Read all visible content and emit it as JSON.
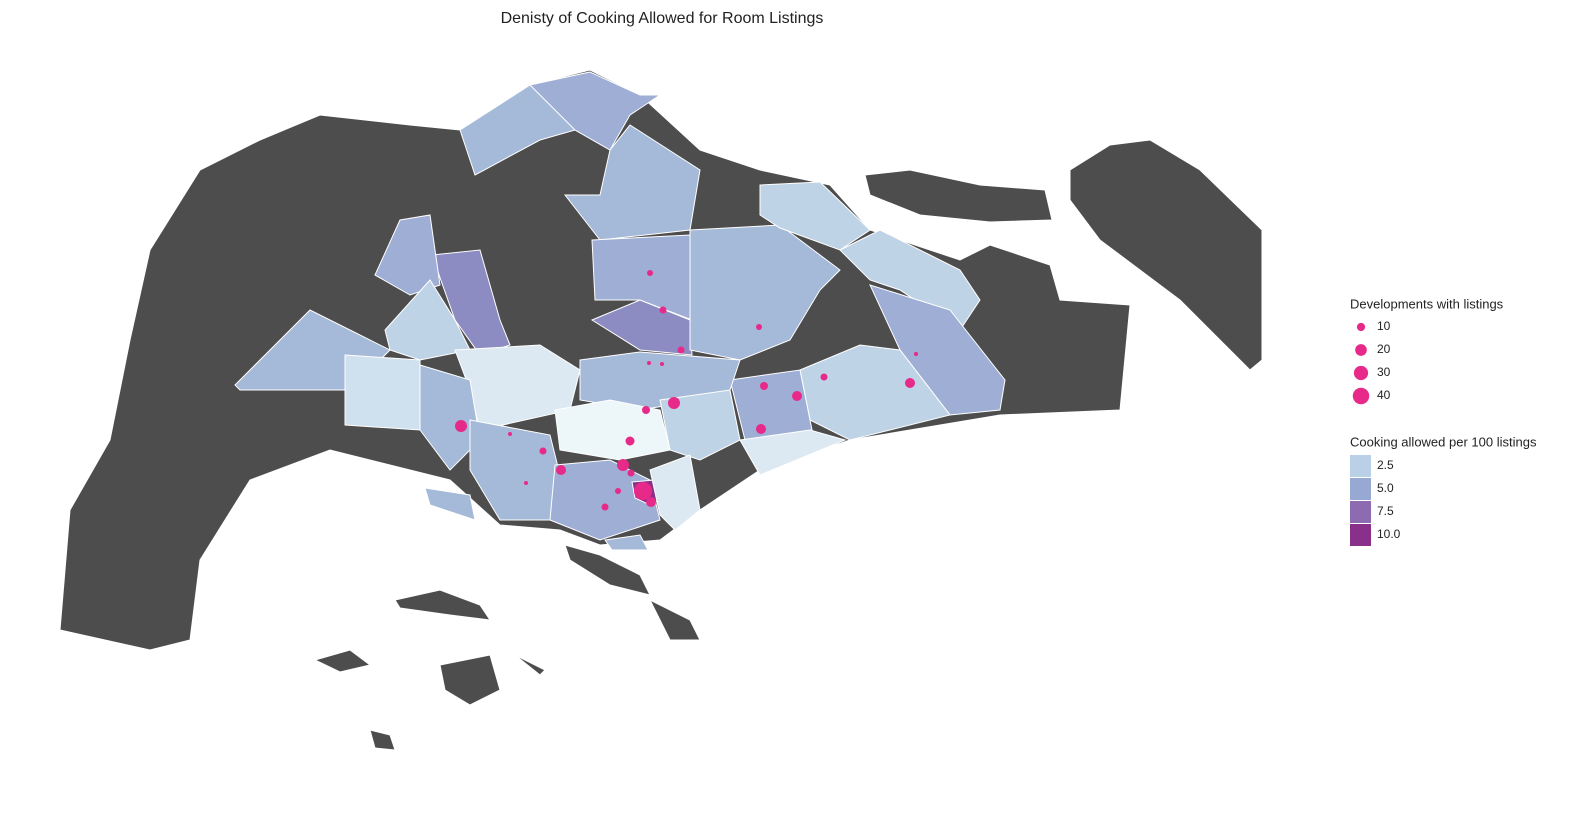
{
  "map": {
    "title": "Denisty of Cooking Allowed for Room Listings",
    "size_legend": {
      "title": "Developments with listings",
      "entries": [
        10,
        20,
        30,
        40
      ],
      "color": "#e7298a"
    },
    "color_legend": {
      "title": "Cooking allowed per 100 listings",
      "entries": [
        2.5,
        {
          "value": 5,
          "label": "5.0"
        },
        7.5,
        {
          "value": 10,
          "label": "10.0"
        }
      ],
      "colors": [
        "#b9d0e6",
        "#97a8d3",
        "#8c6bb1",
        "#88308a"
      ]
    }
  }
}
